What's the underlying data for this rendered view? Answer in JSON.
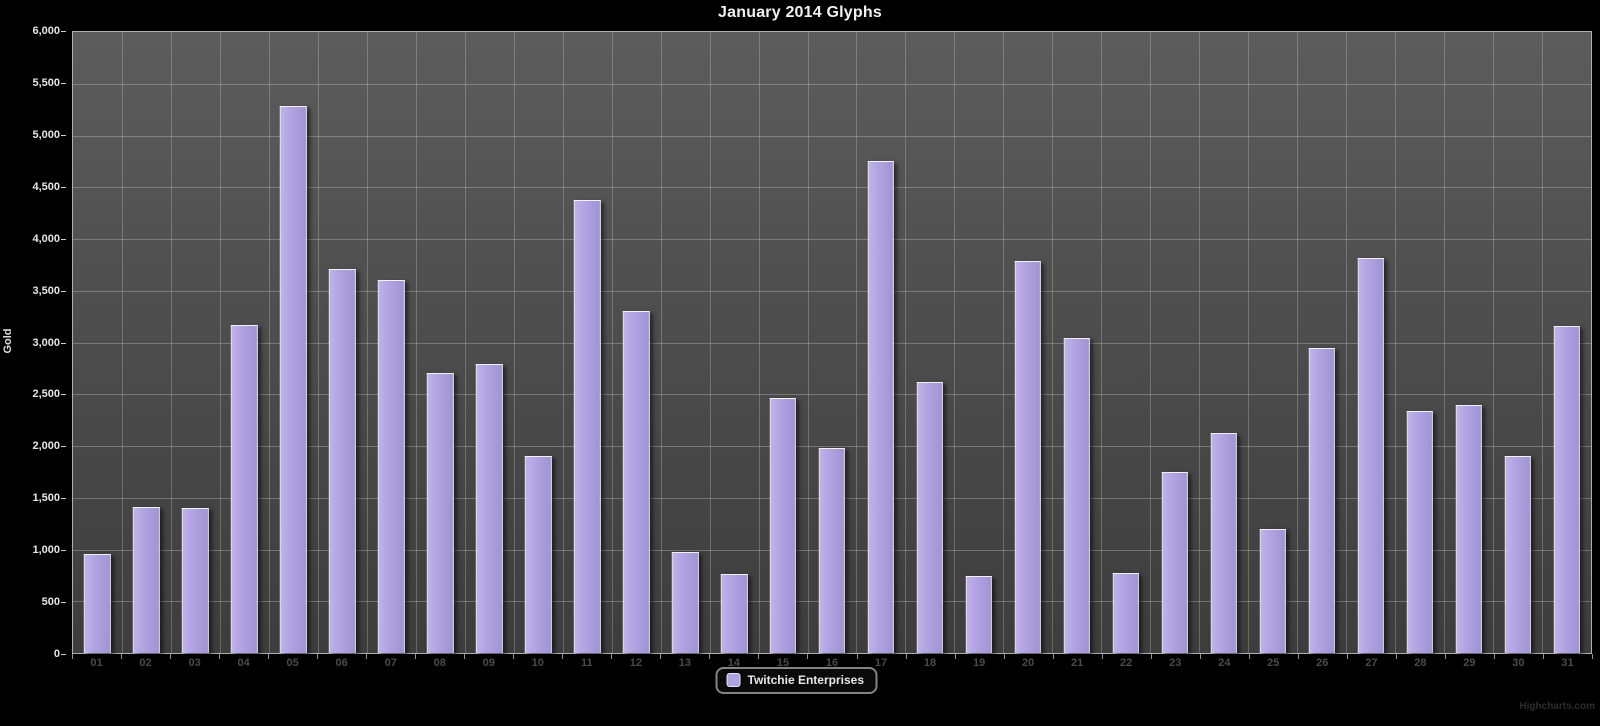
{
  "title": "January 2014 Glyphs",
  "credit": "Highcharts.com",
  "legend": {
    "items": [
      {
        "label": "Twitchie Enterprises",
        "color": "#b0a1e0"
      }
    ]
  },
  "colors": {
    "background": "#000000",
    "plot_background_top": "#5c5c5c",
    "plot_background_bottom": "#3d3d3d",
    "bar_fill": "#b0a1e0",
    "bar_border": "#f2f0fc",
    "gridline": "rgba(255,255,255,0.25)",
    "y_label_color": "#e5e5e5",
    "x_label_color": "#4a4a4a",
    "title_color": "#f0f0f0"
  },
  "chart_data": {
    "type": "bar",
    "title": "January 2014 Glyphs",
    "xlabel": "",
    "ylabel": "Gold",
    "ylim": [
      0,
      6000
    ],
    "y_tick_step": 500,
    "y_tick_labels": [
      "0",
      "500",
      "1,000",
      "1,500",
      "2,000",
      "2,500",
      "3,000",
      "3,500",
      "4,000",
      "4,500",
      "5,000",
      "5,500",
      "6,000"
    ],
    "grid": true,
    "legend_position": "bottom-center",
    "categories": [
      "01",
      "02",
      "03",
      "04",
      "05",
      "06",
      "07",
      "08",
      "09",
      "10",
      "11",
      "12",
      "13",
      "14",
      "15",
      "16",
      "17",
      "18",
      "19",
      "20",
      "21",
      "22",
      "23",
      "24",
      "25",
      "26",
      "27",
      "28",
      "29",
      "30",
      "31"
    ],
    "series": [
      {
        "name": "Twitchie Enterprises",
        "values": [
          960,
          1410,
          1400,
          3170,
          5290,
          3710,
          3600,
          2710,
          2790,
          1900,
          4380,
          3300,
          980,
          760,
          2460,
          1980,
          4750,
          2620,
          740,
          3790,
          3040,
          770,
          1750,
          2130,
          1200,
          2950,
          3820,
          2340,
          2400,
          1900,
          3160
        ]
      }
    ]
  }
}
